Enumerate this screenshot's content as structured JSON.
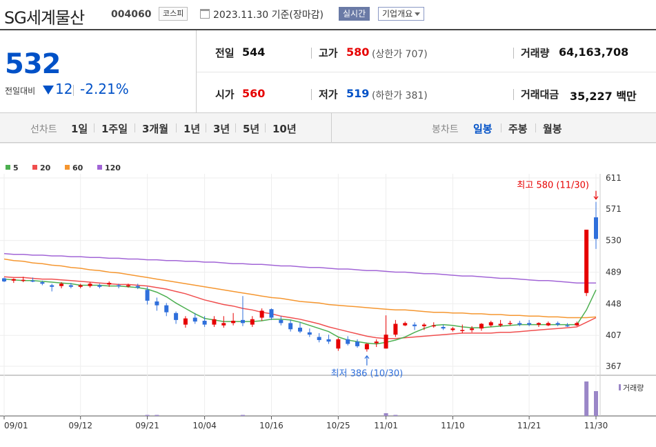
{
  "header": {
    "stock_name": "SG세계물산",
    "stock_code": "004060",
    "market": "코스피",
    "date": "2023.11.30 기준(장마감)",
    "realtime_label": "실시간",
    "overview_label": "기업개요"
  },
  "summary": {
    "price": "532",
    "change_label": "전일대비",
    "change_value": "12",
    "change_pct": "-2.21%",
    "prev_label": "전일",
    "prev_value": "544",
    "high_label": "고가",
    "high_value": "580",
    "upper_limit": "(상한가 707)",
    "volume_label": "거래량",
    "volume_value": "64,163,708",
    "open_label": "시가",
    "open_value": "560",
    "low_label": "저가",
    "low_value": "519",
    "lower_limit": "(하한가 381)",
    "amount_label": "거래대금",
    "amount_value": "35,227 백만"
  },
  "period": {
    "line_label": "선차트",
    "line_options": [
      "1일",
      "1주일",
      "3개월",
      "1년",
      "3년",
      "5년",
      "10년"
    ],
    "candle_label": "봉차트",
    "candle_options": [
      "일봉",
      "주봉",
      "월봉"
    ],
    "active_candle": "일봉"
  },
  "colors": {
    "up": "#e60000",
    "down": "#2f6fdb",
    "ma5": "#4caf50",
    "ma20": "#f04e4e",
    "ma60": "#f5962f",
    "ma120": "#a164d6",
    "volume": "#9a86c7"
  },
  "chart_data": {
    "type": "candlestick",
    "ylim": [
      367,
      611
    ],
    "yticks": [
      611,
      571,
      530,
      489,
      448,
      407,
      367
    ],
    "xticks": [
      {
        "label": "09/01",
        "i": 0
      },
      {
        "label": "09/12",
        "i": 8
      },
      {
        "label": "09/21",
        "i": 15
      },
      {
        "label": "10/04",
        "i": 21
      },
      {
        "label": "10/16",
        "i": 28
      },
      {
        "label": "10/25",
        "i": 35
      },
      {
        "label": "11/01",
        "i": 40
      },
      {
        "label": "11/10",
        "i": 47
      },
      {
        "label": "11/21",
        "i": 55
      },
      {
        "label": "11/30",
        "i": 62
      }
    ],
    "legend": [
      {
        "name": "5",
        "color": "#4caf50"
      },
      {
        "name": "20",
        "color": "#f04e4e"
      },
      {
        "name": "60",
        "color": "#f5962f"
      },
      {
        "name": "120",
        "color": "#a164d6"
      }
    ],
    "annotations": {
      "high": {
        "text": "최고 580 (11/30)",
        "i": 62,
        "value": 580
      },
      "low": {
        "text": "최저 386 (10/30)",
        "i": 38,
        "value": 386
      }
    },
    "volume_label": "거래량",
    "candles": [
      [
        481,
        482,
        476,
        477
      ],
      [
        478,
        481,
        475,
        480
      ],
      [
        479,
        483,
        476,
        479
      ],
      [
        478,
        482,
        476,
        477
      ],
      [
        476,
        478,
        472,
        474
      ],
      [
        472,
        474,
        464,
        470
      ],
      [
        471,
        476,
        468,
        474
      ],
      [
        472,
        475,
        468,
        470
      ],
      [
        470,
        474,
        468,
        472
      ],
      [
        471,
        476,
        469,
        474
      ],
      [
        472,
        474,
        468,
        470
      ],
      [
        473,
        477,
        470,
        475
      ],
      [
        472,
        474,
        468,
        471
      ],
      [
        471,
        474,
        469,
        472
      ],
      [
        471,
        474,
        467,
        469
      ],
      [
        466,
        470,
        447,
        452
      ],
      [
        451,
        456,
        439,
        446
      ],
      [
        446,
        449,
        432,
        437
      ],
      [
        436,
        438,
        422,
        427
      ],
      [
        421,
        432,
        417,
        429
      ],
      [
        430,
        436,
        422,
        425
      ],
      [
        426,
        432,
        418,
        421
      ],
      [
        421,
        432,
        418,
        428
      ],
      [
        420,
        432,
        417,
        423
      ],
      [
        423,
        436,
        420,
        426
      ],
      [
        427,
        458,
        419,
        423
      ],
      [
        421,
        432,
        418,
        428
      ],
      [
        430,
        442,
        426,
        439
      ],
      [
        441,
        442,
        427,
        430
      ],
      [
        427,
        432,
        420,
        423
      ],
      [
        423,
        427,
        412,
        415
      ],
      [
        417,
        424,
        410,
        412
      ],
      [
        411,
        416,
        405,
        408
      ],
      [
        405,
        410,
        398,
        401
      ],
      [
        402,
        408,
        396,
        399
      ],
      [
        390,
        404,
        387,
        402
      ],
      [
        402,
        406,
        394,
        396
      ],
      [
        399,
        402,
        391,
        393
      ],
      [
        389,
        397,
        386,
        396
      ],
      [
        397,
        402,
        392,
        399
      ],
      [
        390,
        433,
        390,
        408
      ],
      [
        408,
        427,
        405,
        422
      ],
      [
        420,
        425,
        419,
        423
      ],
      [
        421,
        424,
        414,
        419
      ],
      [
        419,
        423,
        414,
        421
      ],
      [
        419,
        424,
        417,
        420
      ],
      [
        418,
        421,
        414,
        416
      ],
      [
        414,
        418,
        412,
        416
      ],
      [
        414,
        421,
        410,
        414
      ],
      [
        414,
        419,
        411,
        416
      ],
      [
        416,
        423,
        413,
        422
      ],
      [
        420,
        426,
        418,
        424
      ],
      [
        420,
        427,
        418,
        422
      ],
      [
        422,
        426,
        420,
        423
      ],
      [
        423,
        426,
        419,
        421
      ],
      [
        423,
        427,
        419,
        421
      ],
      [
        421,
        424,
        418,
        423
      ],
      [
        420,
        425,
        419,
        423
      ],
      [
        423,
        425,
        419,
        421
      ],
      [
        420,
        423,
        418,
        419
      ],
      [
        420,
        425,
        419,
        423
      ],
      [
        462,
        544,
        458,
        544
      ],
      [
        560,
        580,
        519,
        532
      ]
    ],
    "ma5": [
      480,
      479,
      478,
      478,
      477,
      476,
      475,
      474,
      472,
      472,
      472,
      471,
      471,
      470,
      469,
      467,
      463,
      457,
      449,
      442,
      435,
      429,
      427,
      425,
      425,
      425,
      425,
      426,
      428,
      428,
      427,
      424,
      420,
      416,
      412,
      405,
      401,
      399,
      397,
      396,
      398,
      401,
      405,
      411,
      416,
      420,
      421,
      420,
      418,
      417,
      417,
      418,
      419,
      420,
      421,
      421,
      421,
      421,
      421,
      421,
      421,
      440,
      466
    ],
    "ma20": [
      483,
      482,
      482,
      481,
      480,
      480,
      479,
      478,
      477,
      476,
      475,
      474,
      473,
      473,
      472,
      471,
      469,
      467,
      464,
      461,
      457,
      453,
      450,
      447,
      445,
      442,
      440,
      437,
      435,
      432,
      430,
      428,
      425,
      422,
      418,
      415,
      412,
      409,
      406,
      404,
      403,
      403,
      404,
      405,
      406,
      407,
      408,
      409,
      410,
      410,
      410,
      410,
      411,
      411,
      412,
      413,
      414,
      415,
      416,
      417,
      418,
      424,
      430
    ],
    "ma60": [
      506,
      504,
      503,
      501,
      500,
      498,
      497,
      495,
      494,
      492,
      491,
      489,
      488,
      486,
      484,
      482,
      480,
      478,
      476,
      474,
      472,
      470,
      468,
      466,
      464,
      462,
      460,
      458,
      456,
      455,
      453,
      451,
      450,
      449,
      447,
      446,
      445,
      444,
      443,
      442,
      441,
      440,
      440,
      439,
      438,
      437,
      437,
      436,
      436,
      435,
      435,
      434,
      434,
      433,
      433,
      432,
      432,
      431,
      431,
      430,
      430,
      430,
      431
    ],
    "ma120": [
      513,
      512,
      512,
      511,
      511,
      510,
      510,
      509,
      509,
      508,
      508,
      507,
      507,
      506,
      506,
      505,
      505,
      504,
      504,
      503,
      503,
      502,
      502,
      501,
      500,
      500,
      499,
      499,
      498,
      497,
      497,
      496,
      495,
      495,
      494,
      493,
      493,
      492,
      491,
      491,
      490,
      489,
      489,
      488,
      487,
      487,
      486,
      485,
      484,
      484,
      483,
      482,
      481,
      481,
      480,
      479,
      478,
      478,
      477,
      476,
      475,
      475,
      475
    ],
    "volume": [
      0.02,
      0.02,
      0.02,
      0.02,
      0.02,
      0.02,
      0.02,
      0.02,
      0.02,
      0.02,
      0.02,
      0.02,
      0.02,
      0.02,
      0.02,
      0.03,
      0.03,
      0.02,
      0.02,
      0.02,
      0.02,
      0.02,
      0.02,
      0.02,
      0.02,
      0.03,
      0.02,
      0.02,
      0.02,
      0.02,
      0.02,
      0.02,
      0.02,
      0.02,
      0.02,
      0.02,
      0.02,
      0.02,
      0.02,
      0.02,
      0.08,
      0.03,
      0.02,
      0.02,
      0.02,
      0.02,
      0.02,
      0.02,
      0.02,
      0.02,
      0.02,
      0.02,
      0.02,
      0.02,
      0.02,
      0.02,
      0.02,
      0.02,
      0.02,
      0.02,
      0.02,
      1.0,
      0.72
    ]
  }
}
